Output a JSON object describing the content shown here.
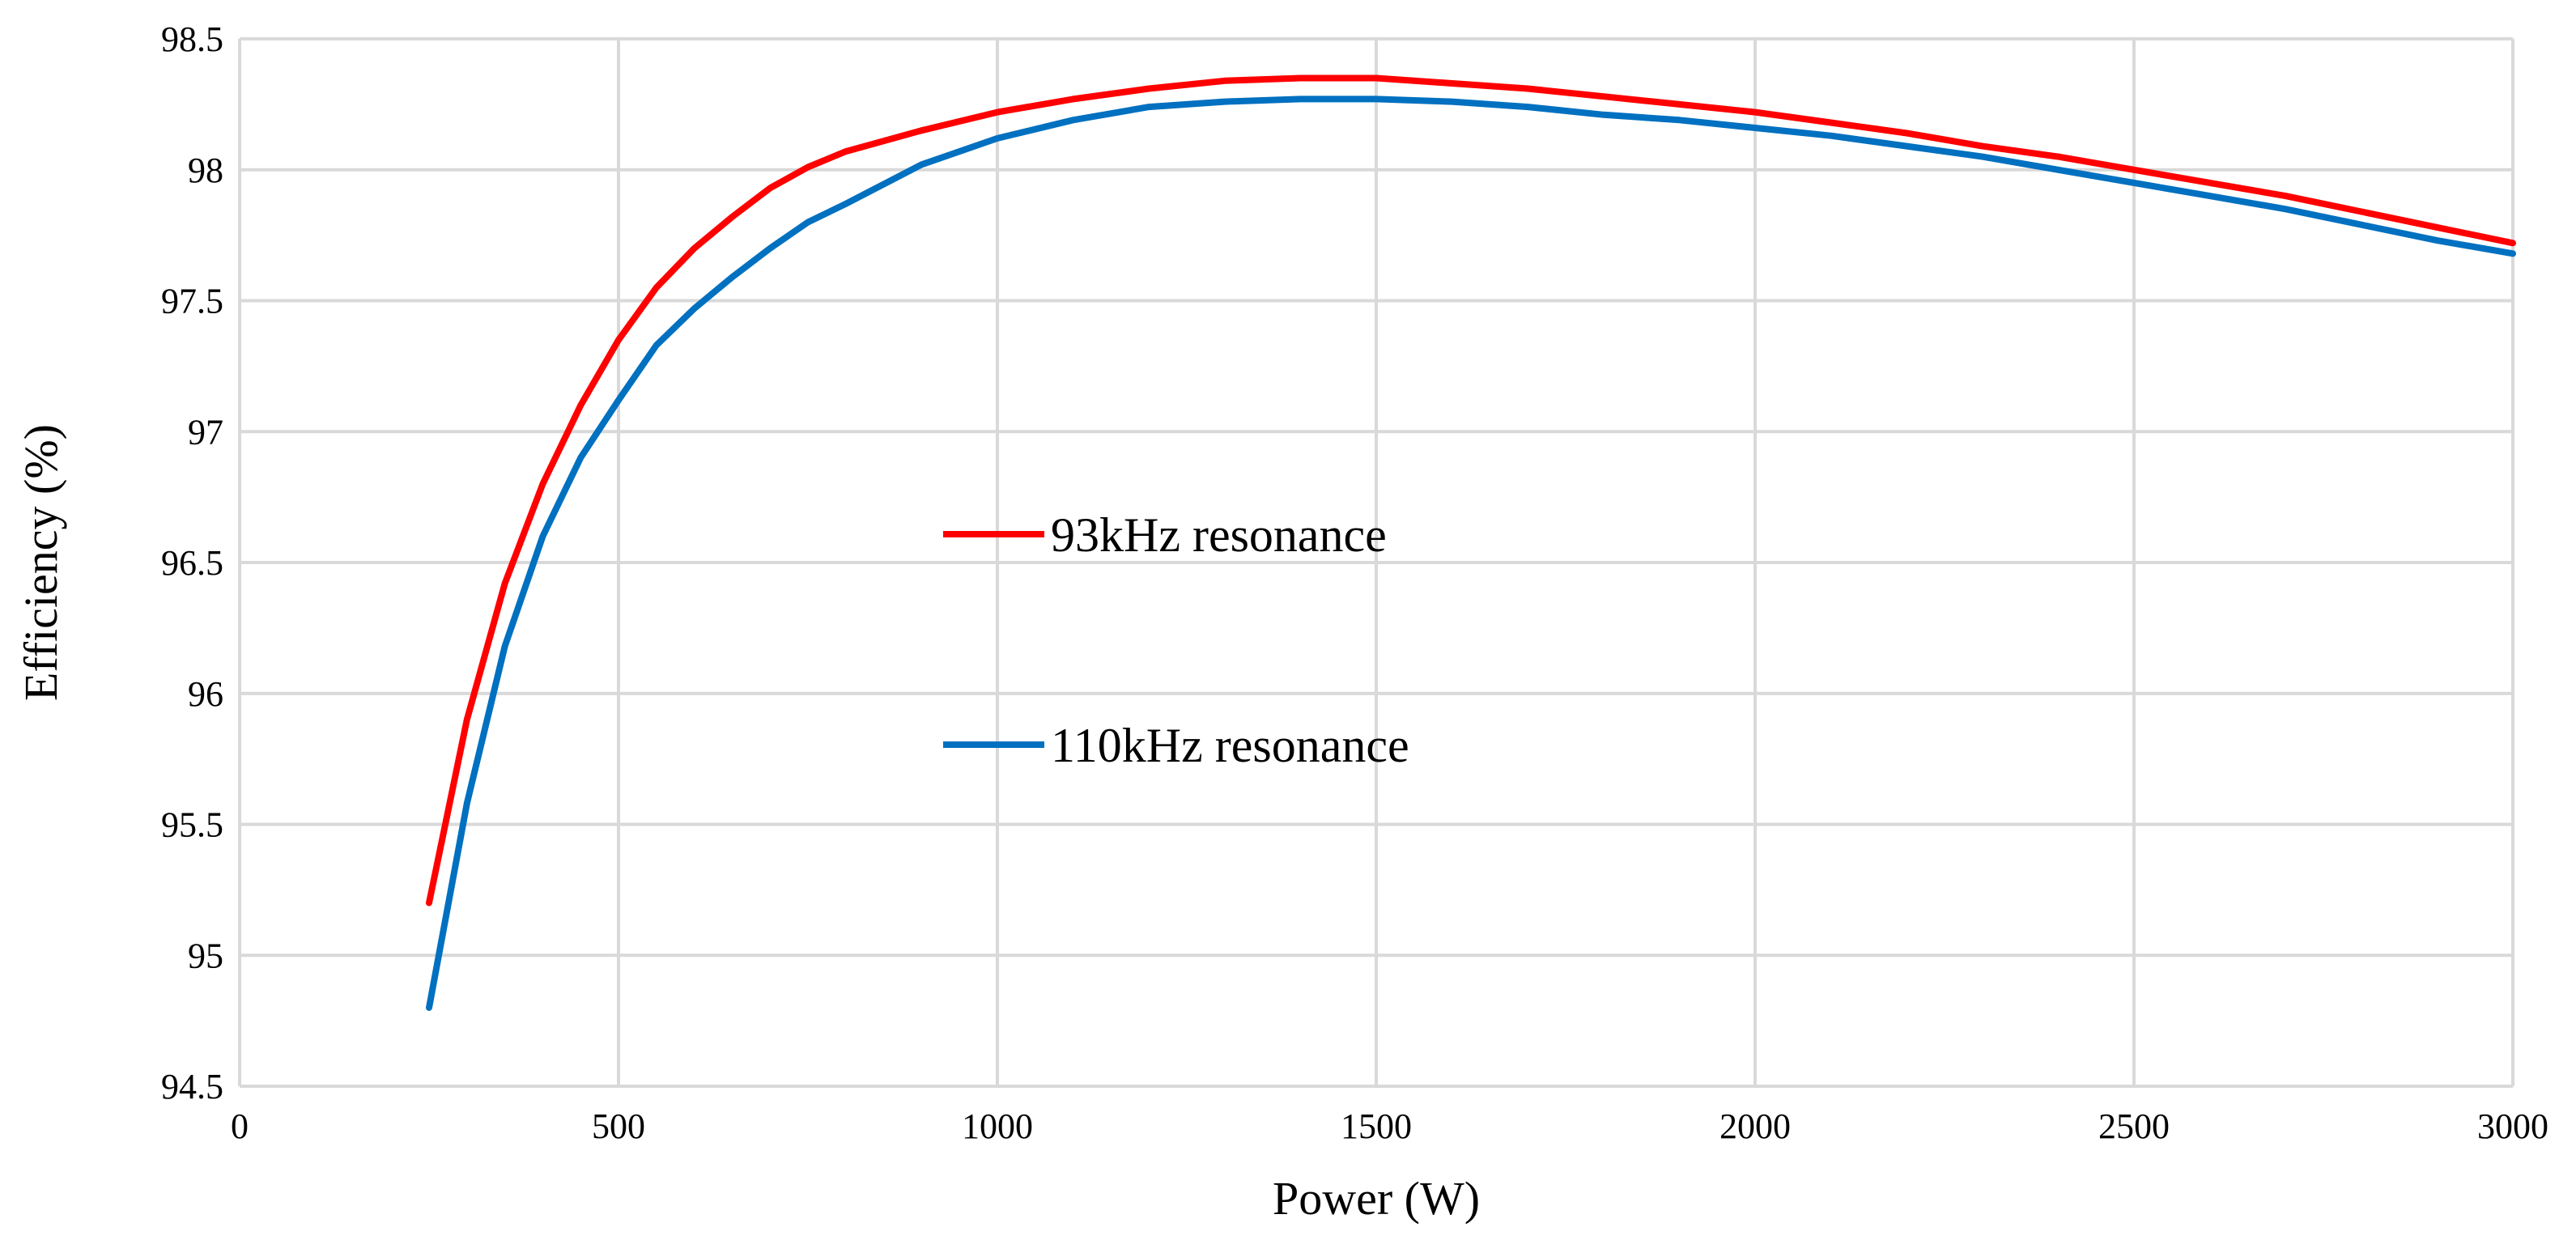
{
  "chart_data": {
    "type": "line",
    "title": "",
    "xlabel": "Power (W)",
    "ylabel": "Efficiency (%)",
    "xlim": [
      0,
      3000
    ],
    "ylim": [
      94.5,
      98.5
    ],
    "xticks": [
      0,
      500,
      1000,
      1500,
      2000,
      2500,
      3000
    ],
    "yticks": [
      94.5,
      95,
      95.5,
      96,
      96.5,
      97,
      97.5,
      98,
      98.5
    ],
    "grid": true,
    "legend_position": "center",
    "series": [
      {
        "name": "93kHz resonance",
        "color": "#ff0000",
        "x": [
          250,
          300,
          350,
          400,
          450,
          500,
          550,
          600,
          650,
          700,
          750,
          800,
          900,
          1000,
          1100,
          1200,
          1300,
          1400,
          1500,
          1600,
          1700,
          1800,
          1900,
          2000,
          2100,
          2200,
          2300,
          2400,
          2500,
          2600,
          2700,
          2800,
          2900,
          3000
        ],
        "y": [
          95.2,
          95.9,
          96.42,
          96.8,
          97.1,
          97.35,
          97.55,
          97.7,
          97.82,
          97.93,
          98.01,
          98.07,
          98.15,
          98.22,
          98.27,
          98.31,
          98.34,
          98.35,
          98.35,
          98.33,
          98.31,
          98.28,
          98.25,
          98.22,
          98.18,
          98.14,
          98.09,
          98.05,
          98.0,
          97.95,
          97.9,
          97.84,
          97.78,
          97.72
        ]
      },
      {
        "name": "110kHz resonance",
        "color": "#0070c0",
        "x": [
          250,
          300,
          350,
          400,
          450,
          500,
          550,
          600,
          650,
          700,
          750,
          800,
          900,
          1000,
          1100,
          1200,
          1300,
          1400,
          1500,
          1600,
          1700,
          1800,
          1900,
          2000,
          2100,
          2200,
          2300,
          2400,
          2500,
          2600,
          2700,
          2800,
          2900,
          3000
        ],
        "y": [
          94.8,
          95.58,
          96.18,
          96.6,
          96.9,
          97.12,
          97.33,
          97.47,
          97.59,
          97.7,
          97.8,
          97.87,
          98.02,
          98.12,
          98.19,
          98.24,
          98.26,
          98.27,
          98.27,
          98.26,
          98.24,
          98.21,
          98.19,
          98.16,
          98.13,
          98.09,
          98.05,
          98.0,
          97.95,
          97.9,
          97.85,
          97.79,
          97.73,
          97.68
        ]
      }
    ]
  }
}
